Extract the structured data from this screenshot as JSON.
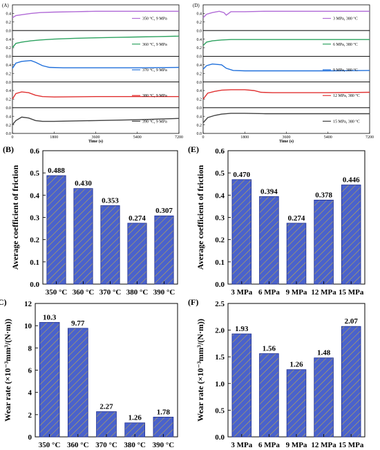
{
  "figure": {
    "hatch_color": "#c8b040",
    "bar_color": "#4a62cc",
    "bar_edge_color": "#1f2f8f",
    "panel_labels": [
      "(A)",
      "(B)",
      "(C)",
      "(D)",
      "(E)",
      "(F)"
    ]
  },
  "chart_data": [
    {
      "id": "A",
      "type": "line",
      "panel_label": "(A)",
      "xlabel": "Time (s)",
      "xlim": [
        0,
        7200
      ],
      "xticks": [
        "0",
        "1800",
        "3600",
        "5400",
        "7200"
      ],
      "ylim": [
        0,
        0.6
      ],
      "yticks": [
        "0.0",
        "0.2",
        "0.4"
      ],
      "series": [
        {
          "name": "350 °C, 9 MPa",
          "color": "#b06ad6",
          "points": [
            [
              0,
              0.3
            ],
            [
              150,
              0.35
            ],
            [
              400,
              0.37
            ],
            [
              800,
              0.4
            ],
            [
              1200,
              0.42
            ],
            [
              1800,
              0.43
            ],
            [
              2700,
              0.44
            ],
            [
              3600,
              0.45
            ],
            [
              4500,
              0.45
            ],
            [
              5400,
              0.45
            ],
            [
              6300,
              0.45
            ],
            [
              7200,
              0.45
            ]
          ]
        },
        {
          "name": "360 °C, 9 MPa",
          "color": "#2ca25f",
          "points": [
            [
              0,
              0.2
            ],
            [
              150,
              0.3
            ],
            [
              400,
              0.33
            ],
            [
              800,
              0.36
            ],
            [
              1200,
              0.38
            ],
            [
              1800,
              0.4
            ],
            [
              2700,
              0.42
            ],
            [
              3600,
              0.43
            ],
            [
              4500,
              0.44
            ],
            [
              5400,
              0.45
            ],
            [
              6300,
              0.46
            ],
            [
              7200,
              0.47
            ]
          ]
        },
        {
          "name": "370 °C, 9 MPa",
          "color": "#1f6fdb",
          "points": [
            [
              0,
              0.32
            ],
            [
              150,
              0.44
            ],
            [
              400,
              0.48
            ],
            [
              800,
              0.5
            ],
            [
              1000,
              0.46
            ],
            [
              1300,
              0.38
            ],
            [
              1600,
              0.34
            ],
            [
              2200,
              0.33
            ],
            [
              3600,
              0.33
            ],
            [
              5400,
              0.33
            ],
            [
              7200,
              0.34
            ]
          ]
        },
        {
          "name": "380 °C, 9 MPa",
          "color": "#e03030",
          "points": [
            [
              0,
              0.2
            ],
            [
              150,
              0.33
            ],
            [
              400,
              0.37
            ],
            [
              700,
              0.35
            ],
            [
              1000,
              0.29
            ],
            [
              1300,
              0.26
            ],
            [
              1800,
              0.25
            ],
            [
              3600,
              0.26
            ],
            [
              5400,
              0.26
            ],
            [
              7200,
              0.26
            ]
          ]
        },
        {
          "name": "390 °C, 9 MPa",
          "color": "#404040",
          "points": [
            [
              0,
              0.2
            ],
            [
              150,
              0.3
            ],
            [
              400,
              0.38
            ],
            [
              700,
              0.36
            ],
            [
              1000,
              0.3
            ],
            [
              1300,
              0.28
            ],
            [
              1800,
              0.28
            ],
            [
              3600,
              0.3
            ],
            [
              5400,
              0.32
            ],
            [
              7200,
              0.35
            ]
          ]
        }
      ]
    },
    {
      "id": "D",
      "type": "line",
      "panel_label": "(D)",
      "xlabel": "Time (s)",
      "xlim": [
        0,
        7200
      ],
      "xticks": [
        "0",
        "1800",
        "3600",
        "5400",
        "7200"
      ],
      "ylim": [
        0,
        0.6
      ],
      "yticks": [
        "0.0",
        "0.2",
        "0.4"
      ],
      "series": [
        {
          "name": "3 MPa, 380 °C",
          "color": "#b06ad6",
          "points": [
            [
              0,
              0.3
            ],
            [
              150,
              0.38
            ],
            [
              400,
              0.42
            ],
            [
              700,
              0.45
            ],
            [
              900,
              0.42
            ],
            [
              1000,
              0.36
            ],
            [
              1200,
              0.44
            ],
            [
              1800,
              0.44
            ],
            [
              2700,
              0.45
            ],
            [
              3600,
              0.45
            ],
            [
              5400,
              0.45
            ],
            [
              7200,
              0.45
            ]
          ]
        },
        {
          "name": "6 MPa, 380 °C",
          "color": "#2ca25f",
          "points": [
            [
              0,
              0.25
            ],
            [
              150,
              0.33
            ],
            [
              400,
              0.36
            ],
            [
              800,
              0.38
            ],
            [
              1200,
              0.39
            ],
            [
              1800,
              0.39
            ],
            [
              3600,
              0.39
            ],
            [
              5400,
              0.39
            ],
            [
              7200,
              0.39
            ]
          ]
        },
        {
          "name": "9 MPa, 380 °C",
          "color": "#1f6fdb",
          "points": [
            [
              0,
              0.3
            ],
            [
              150,
              0.38
            ],
            [
              400,
              0.42
            ],
            [
              800,
              0.4
            ],
            [
              1000,
              0.32
            ],
            [
              1300,
              0.27
            ],
            [
              1800,
              0.26
            ],
            [
              3600,
              0.26
            ],
            [
              5400,
              0.26
            ],
            [
              7200,
              0.27
            ]
          ]
        },
        {
          "name": "12 MPa, 380 °C",
          "color": "#e03030",
          "points": [
            [
              0,
              0.2
            ],
            [
              200,
              0.34
            ],
            [
              500,
              0.38
            ],
            [
              800,
              0.41
            ],
            [
              1200,
              0.42
            ],
            [
              1800,
              0.42
            ],
            [
              2200,
              0.4
            ],
            [
              2500,
              0.36
            ],
            [
              3000,
              0.35
            ],
            [
              3600,
              0.35
            ],
            [
              5400,
              0.35
            ],
            [
              7200,
              0.36
            ]
          ]
        },
        {
          "name": "15 MPa, 380 °C",
          "color": "#404040",
          "points": [
            [
              0,
              0.25
            ],
            [
              200,
              0.37
            ],
            [
              500,
              0.42
            ],
            [
              800,
              0.45
            ],
            [
              1200,
              0.47
            ],
            [
              1800,
              0.47
            ],
            [
              2700,
              0.46
            ],
            [
              3600,
              0.46
            ],
            [
              5400,
              0.46
            ],
            [
              7200,
              0.46
            ]
          ]
        }
      ]
    },
    {
      "id": "B",
      "type": "bar",
      "panel_label": "(B)",
      "categories": [
        "350 °C",
        "360 °C",
        "370 °C",
        "380 °C",
        "390 °C"
      ],
      "values": [
        0.488,
        0.43,
        0.353,
        0.274,
        0.307
      ],
      "value_labels": [
        "0.488",
        "0.430",
        "0.353",
        "0.274",
        "0.307"
      ],
      "ylabel": "Average coefficient of friction",
      "ylim": [
        0,
        0.6
      ],
      "yticks": [
        "0.0",
        "0.1",
        "0.2",
        "0.3",
        "0.4",
        "0.5",
        "0.6"
      ]
    },
    {
      "id": "E",
      "type": "bar",
      "panel_label": "(E)",
      "categories": [
        "3 MPa",
        "6 MPa",
        "9 MPa",
        "12 MPa",
        "15 MPa"
      ],
      "values": [
        0.47,
        0.394,
        0.274,
        0.378,
        0.446
      ],
      "value_labels": [
        "0.470",
        "0.394",
        "0.274",
        "0.378",
        "0.446"
      ],
      "ylabel": "Average coefficient of friction",
      "ylim": [
        0,
        0.6
      ],
      "yticks": [
        "0.0",
        "0.1",
        "0.2",
        "0.3",
        "0.4",
        "0.5",
        "0.6"
      ]
    },
    {
      "id": "C",
      "type": "bar",
      "panel_label": "(C)",
      "categories": [
        "350 °C",
        "360 °C",
        "370 °C",
        "380 °C",
        "390 °C"
      ],
      "values": [
        10.3,
        9.77,
        2.27,
        1.26,
        1.78
      ],
      "value_labels": [
        "10.3",
        "9.77",
        "2.27",
        "1.26",
        "1.78"
      ],
      "ylabel": "Wear rate (×10⁻³mm³/(N·m))",
      "ylim": [
        0,
        12
      ],
      "yticks": [
        "0",
        "2",
        "4",
        "6",
        "8",
        "10",
        "12"
      ]
    },
    {
      "id": "F",
      "type": "bar",
      "panel_label": "(F)",
      "categories": [
        "3 MPa",
        "6 MPa",
        "9 MPa",
        "12 MPa",
        "15 MPa"
      ],
      "values": [
        1.93,
        1.56,
        1.26,
        1.48,
        2.07
      ],
      "value_labels": [
        "1.93",
        "1.56",
        "1.26",
        "1.48",
        "2.07"
      ],
      "ylabel": "Wear rate (×10⁻³mm³/(N·m))",
      "ylim": [
        0,
        2.5
      ],
      "yticks": [
        "0.0",
        "0.5",
        "1.0",
        "1.5",
        "2.0",
        "2.5"
      ]
    }
  ]
}
